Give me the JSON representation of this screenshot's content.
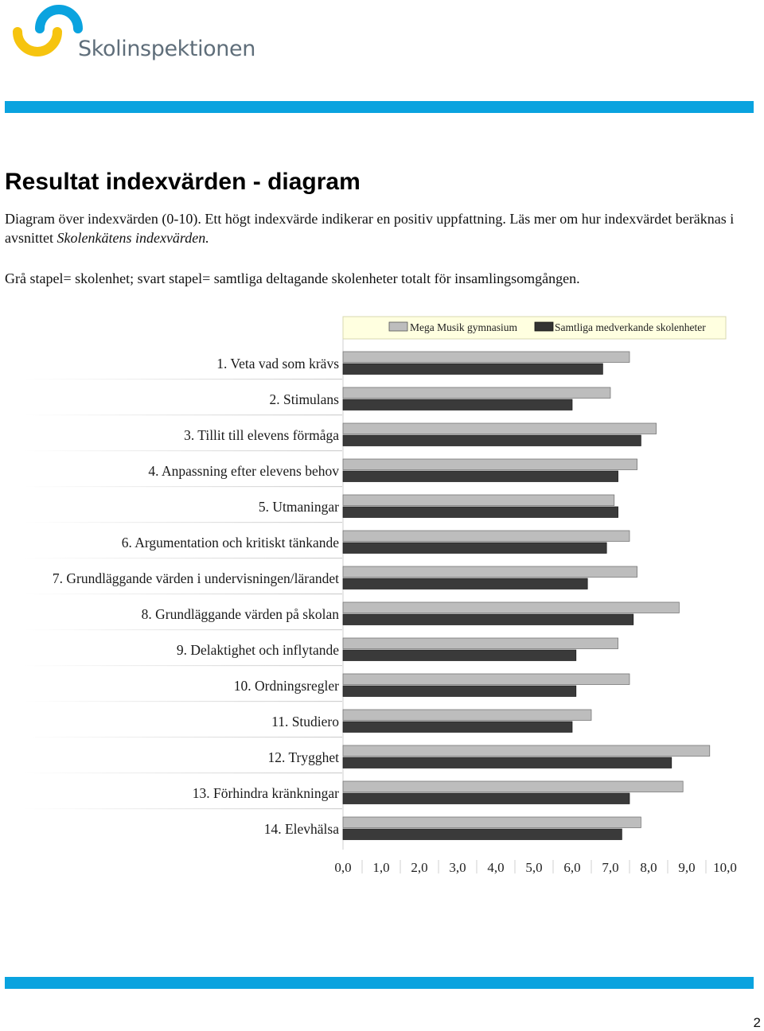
{
  "logo": {
    "brand_name": "Skolinspektionen",
    "icon": "skolinspektionen-logo-icon"
  },
  "heading": {
    "title": "Resultat indexvärden - diagram"
  },
  "intro": {
    "text": "Diagram över indexvärden (0-10). Ett högt indexvärde indikerar en positiv uppfattning. Läs mer om hur indexvärdet beräknas i avsnittet ",
    "link_text": "Skolenkätens indexvärden."
  },
  "legend_note": "Grå stapel= skolenhet; svart stapel= samtliga deltagande skolenheter totalt för insamlingsomgången.",
  "colors": {
    "band": "#0aa3df",
    "legend_bg": "#ffffe0",
    "school_bar": "#bdbdbd",
    "all_bar": "#3a3a3a"
  },
  "chart_data": {
    "type": "bar",
    "orientation": "horizontal",
    "categories": [
      "1. Veta vad som krävs",
      "2. Stimulans",
      "3. Tillit till elevens förmåga",
      "4. Anpassning efter elevens behov",
      "5. Utmaningar",
      "6. Argumentation och kritiskt tänkande",
      "7. Grundläggande värden i undervisningen/lärandet",
      "8. Grundläggande värden på skolan",
      "9. Delaktighet och inflytande",
      "10. Ordningsregler",
      "11. Studiero",
      "12. Trygghet",
      "13. Förhindra kränkningar",
      "14. Elevhälsa"
    ],
    "series": [
      {
        "name": "Mega Musik gymnasium",
        "values": [
          7.5,
          7.0,
          8.2,
          7.7,
          7.1,
          7.5,
          7.7,
          8.8,
          7.2,
          7.5,
          6.5,
          9.6,
          8.9,
          7.8
        ]
      },
      {
        "name": "Samtliga medverkande skolenheter",
        "values": [
          6.8,
          6.0,
          7.8,
          7.2,
          7.2,
          6.9,
          6.4,
          7.6,
          6.1,
          6.1,
          6.0,
          8.6,
          7.5,
          7.3
        ]
      }
    ],
    "xlim": [
      0,
      10
    ],
    "xticks": [
      "0,0",
      "1,0",
      "2,0",
      "3,0",
      "4,0",
      "5,0",
      "6,0",
      "7,0",
      "8,0",
      "9,0",
      "10,0"
    ],
    "legend_position": "top",
    "grid": false
  },
  "page_number": "2"
}
